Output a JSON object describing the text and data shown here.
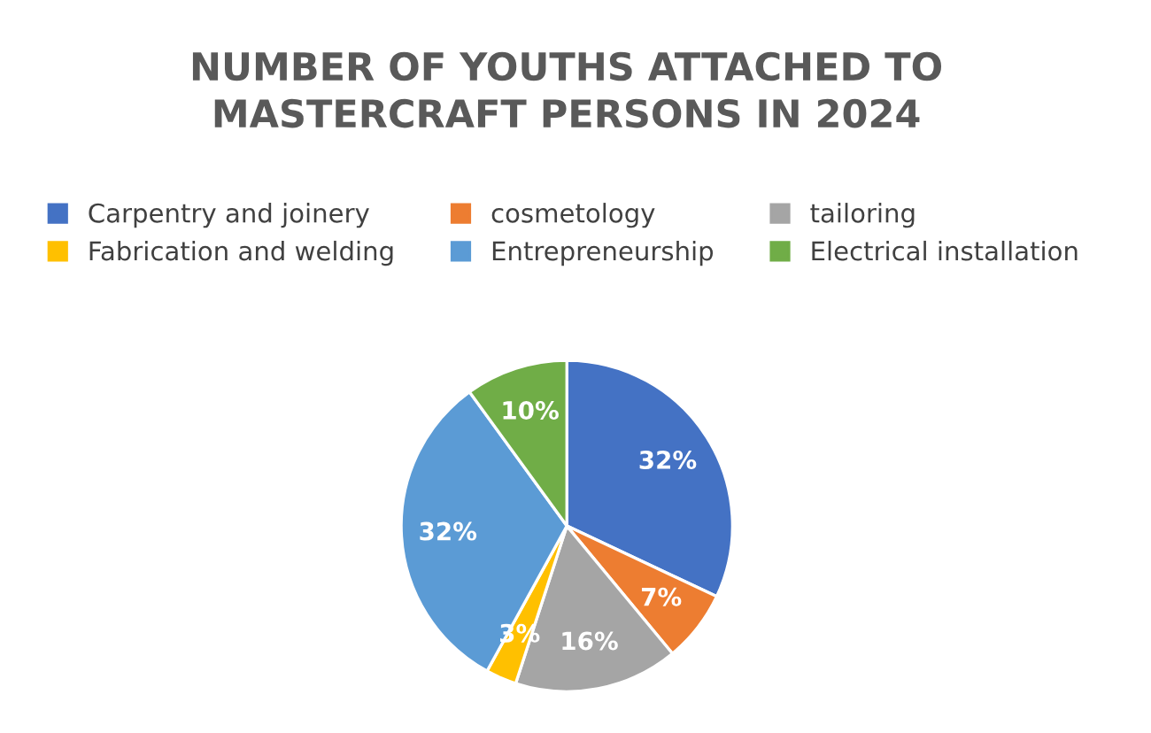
{
  "chart_data": {
    "type": "pie",
    "title": "NUMBER OF YOUTHS ATTACHED TO\nMASTERCRAFT PERSONS IN 2024",
    "categories": [
      "Carpentry and joinery",
      "cosmetology",
      "tailoring",
      "Fabrication and welding",
      "Entrepreneurship",
      "Electrical installation"
    ],
    "values": [
      32,
      7,
      16,
      3,
      32,
      10
    ],
    "colors": [
      "#4472c4",
      "#ed7d31",
      "#a5a5a5",
      "#ffc000",
      "#5b9bd5",
      "#70ad47"
    ],
    "value_labels": [
      "32%",
      "7%",
      "16%",
      "3%",
      "32%",
      "10%"
    ],
    "legend": "top"
  }
}
